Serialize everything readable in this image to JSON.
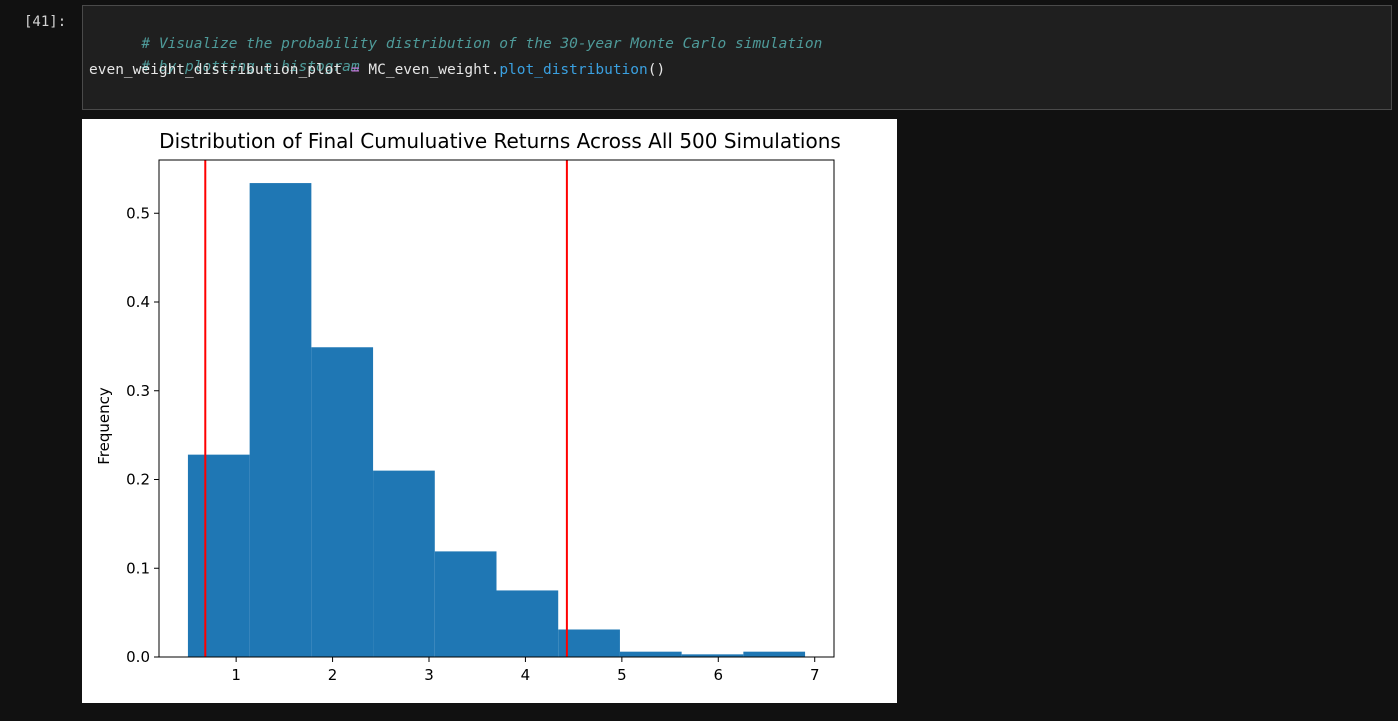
{
  "cell": {
    "prompt": "[41]:",
    "code_lines": [
      {
        "text": "# Visualize the probability distribution of the 30-year Monte Carlo simulation"
      },
      {
        "text": "# by plotting a histogram"
      },
      {
        "var": "even_weight_distribution_plot",
        "op": "=",
        "obj": "MC_even_weight.",
        "method": "plot_distribution",
        "tail": "()"
      }
    ]
  },
  "chart_data": {
    "type": "bar",
    "title": "Distribution of Final Cumuluative Returns Across All 500 Simulations",
    "xlabel": "",
    "ylabel": "Frequency",
    "xlim": [
      0.2,
      7.2
    ],
    "ylim": [
      0,
      0.56
    ],
    "xticks": [
      1,
      2,
      3,
      4,
      5,
      6,
      7
    ],
    "yticks": [
      0.0,
      0.1,
      0.2,
      0.3,
      0.4,
      0.5
    ],
    "ytick_labels": [
      "0.0",
      "0.1",
      "0.2",
      "0.3",
      "0.4",
      "0.5"
    ],
    "bins": [
      {
        "x0": 0.5,
        "x1": 1.14,
        "value": 0.228
      },
      {
        "x0": 1.14,
        "x1": 1.78,
        "value": 0.534
      },
      {
        "x0": 1.78,
        "x1": 2.42,
        "value": 0.349
      },
      {
        "x0": 2.42,
        "x1": 3.06,
        "value": 0.21
      },
      {
        "x0": 3.06,
        "x1": 3.7,
        "value": 0.119
      },
      {
        "x0": 3.7,
        "x1": 4.34,
        "value": 0.075
      },
      {
        "x0": 4.34,
        "x1": 4.98,
        "value": 0.031
      },
      {
        "x0": 4.98,
        "x1": 5.62,
        "value": 0.006
      },
      {
        "x0": 5.62,
        "x1": 6.26,
        "value": 0.003
      },
      {
        "x0": 6.26,
        "x1": 6.9,
        "value": 0.006
      }
    ],
    "vlines": [
      0.68,
      4.43
    ],
    "colors": {
      "bar": "#1f77b4",
      "vline": "#ff0000",
      "axis": "#000000"
    },
    "grid": false
  }
}
